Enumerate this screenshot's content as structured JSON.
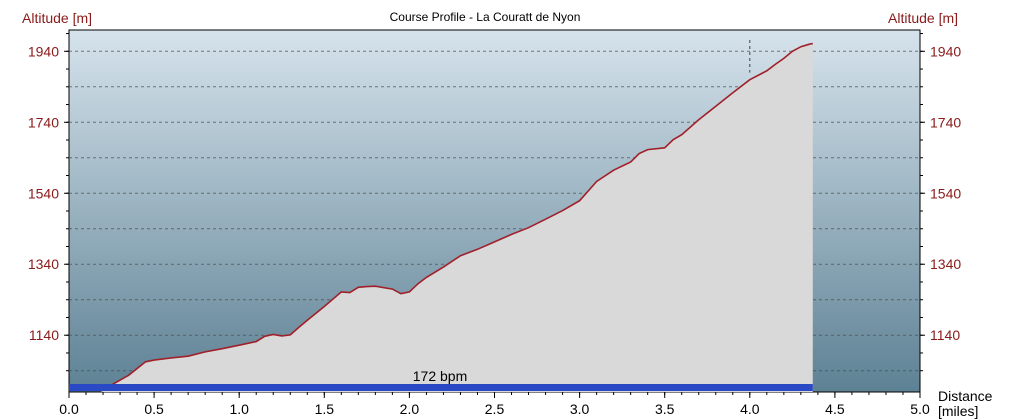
{
  "chart_data": {
    "type": "area",
    "title": "Course Profile - La Couratt de Nyon",
    "ylabel_left": "Altitude [m]",
    "ylabel_right": "Altitude [m]",
    "xlabel": "Distance",
    "xunit": "[miles]",
    "xlim": [
      0,
      5
    ],
    "ylim": [
      980,
      2000
    ],
    "yticks": [
      1140,
      1340,
      1540,
      1740,
      1940
    ],
    "xticks": [
      "0.0",
      "0.5",
      "1.0",
      "1.5",
      "2.0",
      "2.5",
      "3.0",
      "3.5",
      "4.0",
      "4.5",
      "5.0"
    ],
    "grid": true,
    "x": [
      0.19,
      0.25,
      0.35,
      0.45,
      0.5,
      0.6,
      0.7,
      0.8,
      0.9,
      1.0,
      1.1,
      1.15,
      1.2,
      1.25,
      1.3,
      1.35,
      1.4,
      1.5,
      1.6,
      1.65,
      1.7,
      1.75,
      1.8,
      1.9,
      1.95,
      2.0,
      2.05,
      2.1,
      2.2,
      2.3,
      2.4,
      2.5,
      2.6,
      2.7,
      2.8,
      2.9,
      3.0,
      3.05,
      3.1,
      3.2,
      3.3,
      3.35,
      3.4,
      3.5,
      3.55,
      3.6,
      3.7,
      3.8,
      3.9,
      4.0,
      4.1,
      4.15,
      4.2,
      4.25,
      4.3,
      4.35,
      4.37
    ],
    "y": [
      983,
      1000,
      1027,
      1065,
      1070,
      1076,
      1081,
      1093,
      1102,
      1112,
      1122,
      1137,
      1142,
      1138,
      1141,
      1162,
      1182,
      1221,
      1262,
      1260,
      1275,
      1277,
      1278,
      1270,
      1257,
      1262,
      1285,
      1303,
      1332,
      1364,
      1382,
      1403,
      1424,
      1443,
      1467,
      1491,
      1519,
      1546,
      1573,
      1605,
      1628,
      1652,
      1663,
      1668,
      1691,
      1705,
      1747,
      1785,
      1823,
      1860,
      1885,
      1903,
      1920,
      1940,
      1953,
      1960,
      1962
    ],
    "heart_rate_label": "172 bpm",
    "colors": {
      "line": "#a0202a",
      "fill": "#d9d9d9",
      "plot_bg_top": "#d6e3ec",
      "plot_bg_bottom": "#5d8194",
      "hr_bar": "#2a49c4",
      "tick_label_y": "#8b1a1a",
      "tick_label_x": "#000000"
    }
  }
}
